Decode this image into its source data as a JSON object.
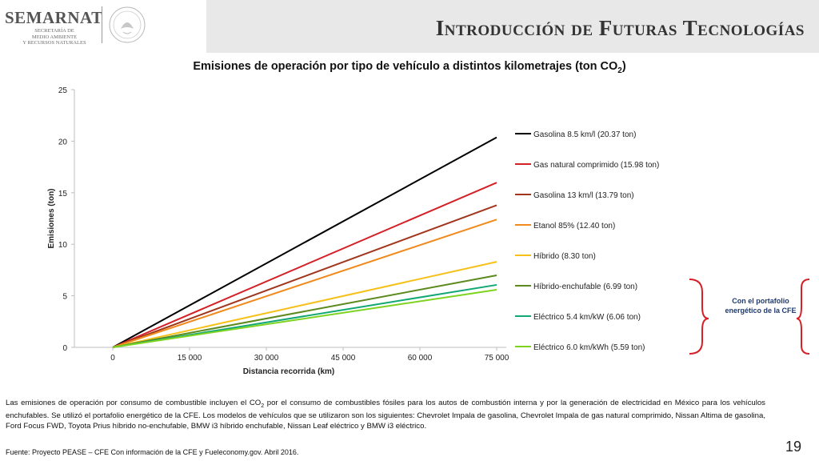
{
  "header": {
    "logo_name": "SEMARNAT",
    "logo_sub_1": "SECRETARÍA DE",
    "logo_sub_2": "MEDIO AMBIENTE",
    "logo_sub_3": "Y RECURSOS NATURALES",
    "slide_title": "Introducción de Futuras Tecnologías"
  },
  "chart_data": {
    "type": "line",
    "title_main": "Emisiones de operación por tipo de vehículo a distintos kilometrajes (ton CO",
    "title_sub": "2",
    "title_end": ")",
    "xlabel": "Distancia recorrida (km)",
    "ylabel": "Emisiones (ton)",
    "xlim": [
      0,
      75000
    ],
    "ylim": [
      0,
      25
    ],
    "x_ticks": [
      "0",
      "15 000",
      "30 000",
      "45 000",
      "60 000",
      "75 000"
    ],
    "x_tick_values": [
      0,
      15000,
      30000,
      45000,
      60000,
      75000
    ],
    "y_ticks": [
      "0",
      "5",
      "10",
      "15",
      "20",
      "25"
    ],
    "y_tick_values": [
      0,
      5,
      10,
      15,
      20,
      25
    ],
    "grid": false,
    "legend_position": "right",
    "x": [
      0,
      75000
    ],
    "series": [
      {
        "name": "Gasolina 8.5 km/l (20.37 ton)",
        "values": [
          0,
          20.37
        ],
        "color": "#000000"
      },
      {
        "name": "Gas natural comprimido (15.98 ton)",
        "values": [
          0,
          15.98
        ],
        "color": "#d42027"
      },
      {
        "name": "Gasolina 13 km/l (13.79 ton)",
        "values": [
          0,
          13.79
        ],
        "color": "#a0361c"
      },
      {
        "name": "Etanol 85% (12.40 ton)",
        "values": [
          0,
          12.4
        ],
        "color": "#f08a1c"
      },
      {
        "name": "Híbrido (8.30 ton)",
        "values": [
          0,
          8.3
        ],
        "color": "#f5c11a"
      },
      {
        "name": "Híbrido-enchufable (6.99 ton)",
        "values": [
          0,
          6.99
        ],
        "color": "#5d8a1e"
      },
      {
        "name": "Eléctrico 5.4 km/kW (6.06 ton)",
        "values": [
          0,
          6.06
        ],
        "color": "#12a873"
      },
      {
        "name": "Eléctrico 6.0 km/kWh (5.59 ton)",
        "values": [
          0,
          5.59
        ],
        "color": "#7ed321"
      }
    ]
  },
  "annotation": {
    "line1": "Con el portafolio",
    "line2": "energético de la CFE",
    "bracket_color": "#d42027"
  },
  "body": {
    "p1": "Las emisiones de operación por consumo de combustible incluyen el CO",
    "p1_sub": "2",
    "p2": " por el consumo de combustibles fósiles para los autos de combustión interna y por la generación de electricidad en México para los vehículos enchufables. Se utilizó el portafolio energético de la CFE. Los modelos de vehículos que se utilizaron son los siguientes: Chevrolet Impala de gasolina, Chevrolet Impala de gas natural comprimido, Nissan Altima de gasolina, Ford Focus FWD, Toyota Prius híbrido no-enchufable, BMW i3 híbrido enchufable, Nissan Leaf eléctrico y BMW i3 eléctrico."
  },
  "footer": {
    "source": "Fuente: Proyecto PEASE – CFE Con información de la CFE y Fueleconomy.gov. Abril 2016.",
    "page_number": "19"
  }
}
